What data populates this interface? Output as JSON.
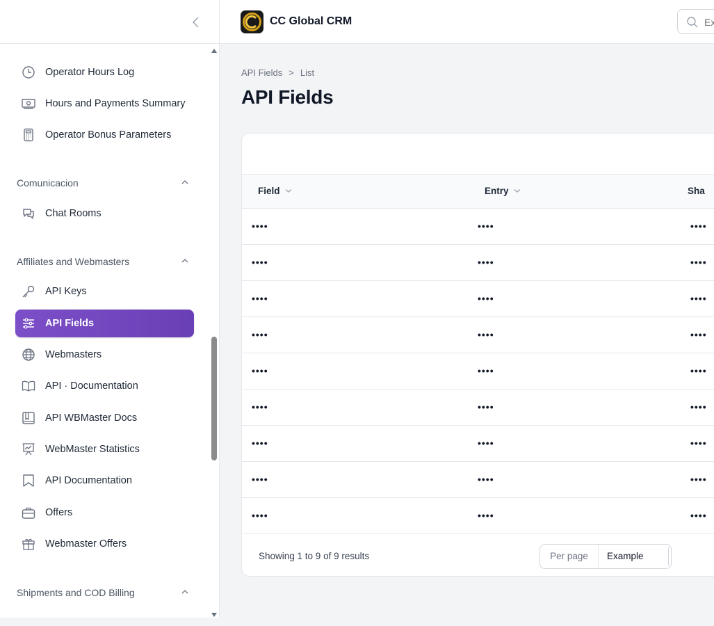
{
  "app": {
    "name": "CC Global CRM"
  },
  "search": {
    "placeholder": "Ex"
  },
  "sidebar": {
    "items_top": [
      {
        "label": "Operator Hours Log",
        "icon": "clock-icon"
      },
      {
        "label": "Hours and Payments Summary",
        "icon": "cash-icon"
      },
      {
        "label": "Operator Bonus Parameters",
        "icon": "calculator-icon"
      }
    ],
    "groups": [
      {
        "label": "Comunicacion",
        "items": [
          {
            "label": "Chat Rooms",
            "icon": "chat-icon"
          }
        ]
      },
      {
        "label": "Affiliates and Webmasters",
        "items": [
          {
            "label": "API Keys",
            "icon": "key-icon"
          },
          {
            "label": "API Fields",
            "icon": "sliders-icon",
            "active": true
          },
          {
            "label": "Webmasters",
            "icon": "globe-icon"
          },
          {
            "label": "API · Documentation",
            "icon": "book-open-icon"
          },
          {
            "label": "API WBMaster Docs",
            "icon": "book-icon"
          },
          {
            "label": "WebMaster Statistics",
            "icon": "presentation-chart-icon"
          },
          {
            "label": "API Documentation",
            "icon": "bookmark-icon"
          },
          {
            "label": "Offers",
            "icon": "briefcase-icon"
          },
          {
            "label": "Webmaster Offers",
            "icon": "gift-icon"
          }
        ]
      },
      {
        "label": "Shipments and COD Billing",
        "items": []
      }
    ]
  },
  "breadcrumb": {
    "parent": "API Fields",
    "separator": ">",
    "current": "List"
  },
  "page": {
    "title": "API Fields"
  },
  "table": {
    "columns": [
      "Field",
      "Entry",
      "Sha"
    ],
    "rows": [
      [
        "••••",
        "••••",
        "••••"
      ],
      [
        "••••",
        "••••",
        "••••"
      ],
      [
        "••••",
        "••••",
        "••••"
      ],
      [
        "••••",
        "••••",
        "••••"
      ],
      [
        "••••",
        "••••",
        "••••"
      ],
      [
        "••••",
        "••••",
        "••••"
      ],
      [
        "••••",
        "••••",
        "••••"
      ],
      [
        "••••",
        "••••",
        "••••"
      ],
      [
        "••••",
        "••••",
        "••••"
      ]
    ],
    "summary": "Showing 1 to 9 of 9 results",
    "per_page_label": "Per page",
    "per_page_value": "Example"
  },
  "colors": {
    "accent": "#6d44bc",
    "background": "#f3f4f6"
  }
}
